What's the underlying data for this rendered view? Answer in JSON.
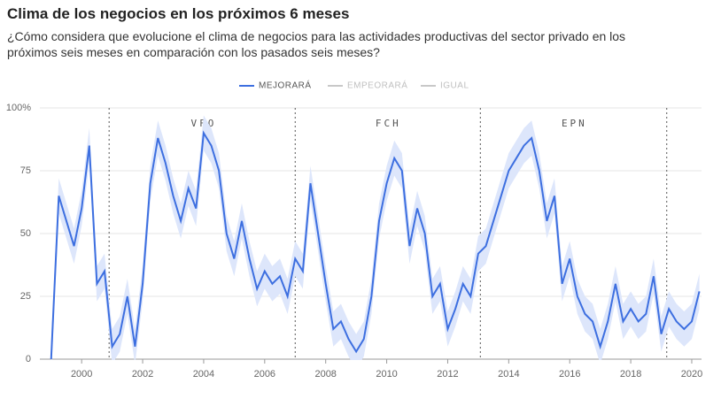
{
  "chart_data": {
    "type": "line",
    "title": "Clima de los negocios en los próximos 6 meses",
    "subtitle": "¿Cómo considera que evolucione el clima de negocios para las actividades productivas del sector privado en los próximos seis meses en comparación con los pasados seis meses?",
    "x": [
      1999,
      1999.25,
      1999.5,
      1999.75,
      2000,
      2000.25,
      2000.5,
      2000.75,
      2001,
      2001.25,
      2001.5,
      2001.75,
      2002,
      2002.25,
      2002.5,
      2002.75,
      2003,
      2003.25,
      2003.5,
      2003.75,
      2004,
      2004.25,
      2004.5,
      2004.75,
      2005,
      2005.25,
      2005.5,
      2005.75,
      2006,
      2006.25,
      2006.5,
      2006.75,
      2007,
      2007.25,
      2007.5,
      2007.75,
      2008,
      2008.25,
      2008.5,
      2008.75,
      2009,
      2009.25,
      2009.5,
      2009.75,
      2010,
      2010.25,
      2010.5,
      2010.75,
      2011,
      2011.25,
      2011.5,
      2011.75,
      2012,
      2012.25,
      2012.5,
      2012.75,
      2013,
      2013.25,
      2013.5,
      2013.75,
      2014,
      2014.25,
      2014.5,
      2014.75,
      2015,
      2015.25,
      2015.5,
      2015.75,
      2016,
      2016.25,
      2016.5,
      2016.75,
      2017,
      2017.25,
      2017.5,
      2017.75,
      2018,
      2018.25,
      2018.5,
      2018.75,
      2019,
      2019.25,
      2019.5,
      2019.75,
      2020,
      2020.25
    ],
    "series": [
      {
        "name": "MEJORARÁ",
        "color": "#3d6fe0",
        "band_color": "#dde6fb",
        "error": 7,
        "visible": true,
        "values": [
          0,
          65,
          55,
          45,
          60,
          85,
          30,
          35,
          5,
          10,
          25,
          5,
          30,
          70,
          88,
          78,
          65,
          55,
          68,
          60,
          90,
          85,
          75,
          50,
          40,
          55,
          40,
          28,
          35,
          30,
          33,
          25,
          40,
          35,
          70,
          50,
          30,
          12,
          15,
          8,
          3,
          8,
          25,
          55,
          70,
          80,
          75,
          45,
          60,
          50,
          25,
          30,
          12,
          20,
          30,
          25,
          42,
          45,
          55,
          65,
          75,
          80,
          85,
          88,
          75,
          55,
          65,
          30,
          40,
          25,
          18,
          15,
          5,
          15,
          30,
          15,
          20,
          15,
          18,
          33,
          10,
          20,
          15,
          12,
          15,
          27
        ]
      },
      {
        "name": "EMPEORARÁ",
        "color": "#c8c8c8",
        "visible": false
      },
      {
        "name": "IGUAL",
        "color": "#c8c8c8",
        "visible": false
      }
    ],
    "dividers": [
      2000.9,
      2007.0,
      2013.07,
      2019.18
    ],
    "periods": [
      {
        "label": "VFO",
        "x": 2004.0
      },
      {
        "label": "FCH",
        "x": 2010.05
      },
      {
        "label": "EPN",
        "x": 2016.15
      }
    ],
    "xlim": [
      1998.63,
      2020.32
    ],
    "xticks": [
      2000,
      2002,
      2004,
      2006,
      2008,
      2010,
      2012,
      2014,
      2016,
      2018,
      2020
    ],
    "ylim": [
      0,
      100
    ],
    "yticks": [
      0,
      25,
      50,
      75,
      {
        "value": 100,
        "label": "100%"
      }
    ],
    "grid": true
  }
}
